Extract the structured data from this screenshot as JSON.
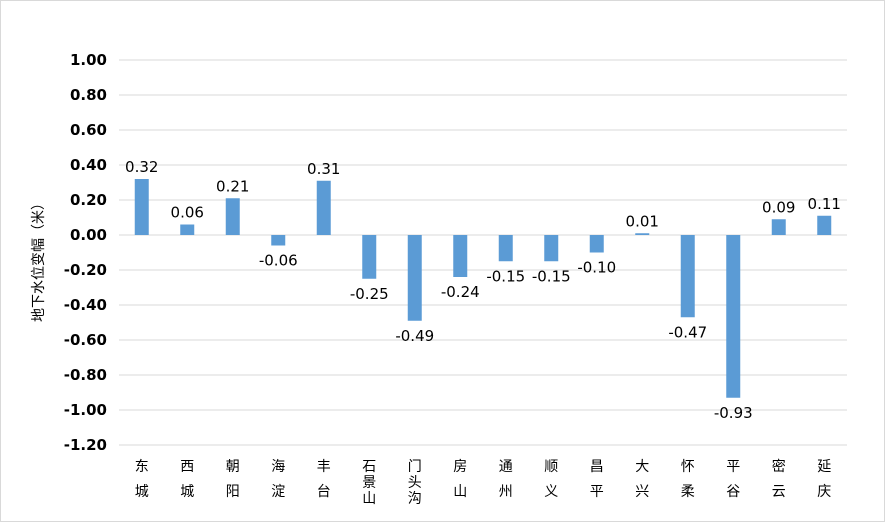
{
  "chart_data": {
    "type": "bar",
    "ylabel": "地下水位变幅（米）",
    "categories": [
      "东城",
      "西城",
      "朝阳",
      "海淀",
      "丰台",
      "石景山",
      "门头沟",
      "房山",
      "通州",
      "顺义",
      "昌平",
      "大兴",
      "怀柔",
      "平谷",
      "密云",
      "延庆"
    ],
    "values": [
      0.32,
      0.06,
      0.21,
      -0.06,
      0.31,
      -0.25,
      -0.49,
      -0.24,
      -0.15,
      -0.15,
      -0.1,
      0.01,
      -0.47,
      -0.93,
      0.09,
      0.11
    ],
    "data_labels": [
      "0.32",
      "0.06",
      "0.21",
      "-0.06",
      "0.31",
      "-0.25",
      "-0.49",
      "-0.24",
      "-0.15",
      "-0.15",
      "-0.10",
      "0.01",
      "-0.47",
      "-0.93",
      "0.09",
      "0.11"
    ],
    "ylim": [
      -1.2,
      1.0
    ],
    "yticks": [
      1.0,
      0.8,
      0.6,
      0.4,
      0.2,
      0.0,
      -0.2,
      -0.4,
      -0.6,
      -0.8,
      -1.0,
      -1.2
    ],
    "ytick_labels": [
      "1.00",
      "0.80",
      "0.60",
      "0.40",
      "0.20",
      "0.00",
      "-0.20",
      "-0.40",
      "-0.60",
      "-0.80",
      "-1.00",
      "-1.20"
    ],
    "grid": true,
    "bar_color": "#5b9bd5",
    "grid_color": "#d9d9d9"
  }
}
